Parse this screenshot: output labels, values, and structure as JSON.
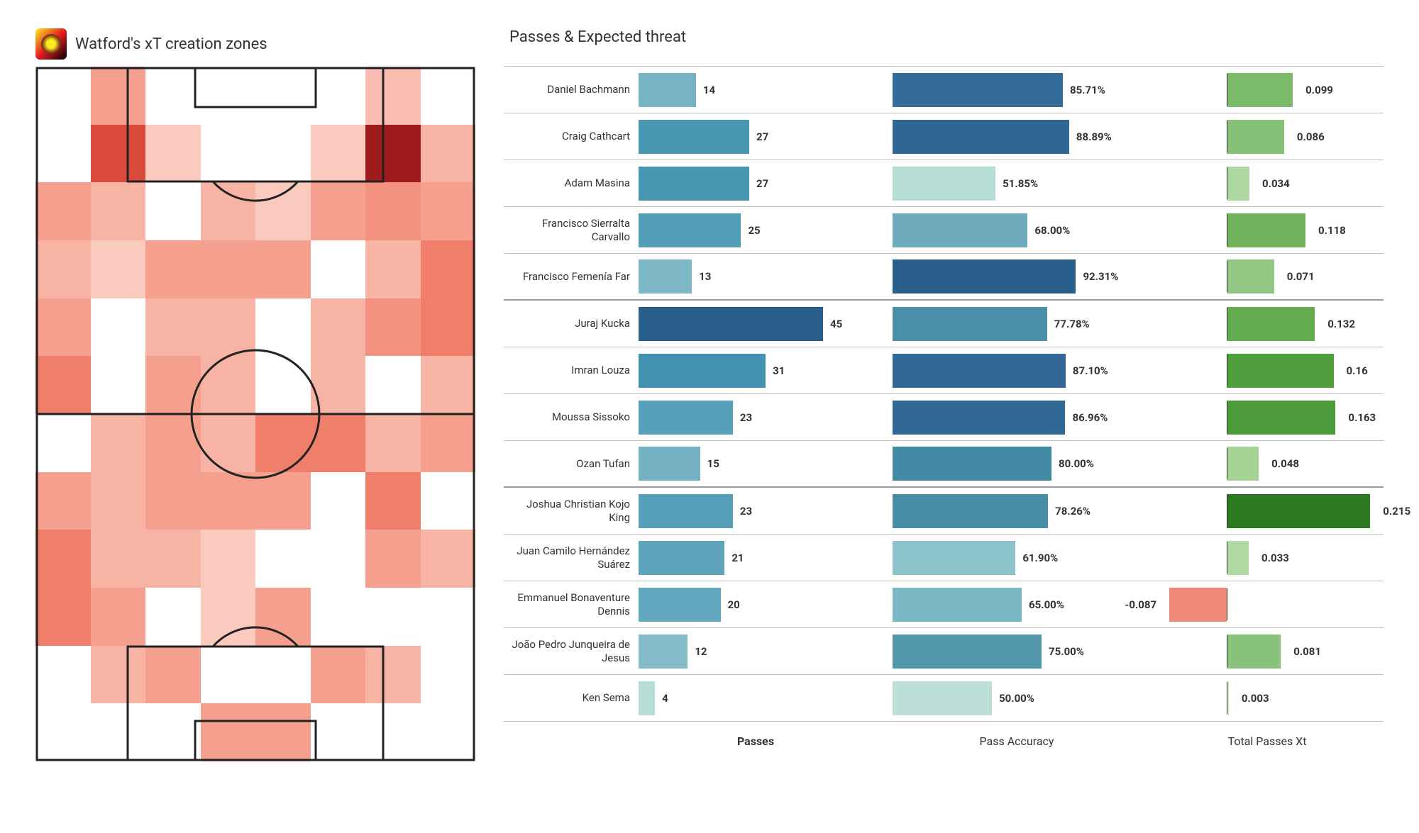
{
  "heatmap": {
    "title": "Watford's xT creation zones",
    "cols": 8,
    "rows": 12,
    "cell_colors": [
      "#ffffff",
      "#f5a08e",
      "#ffffff",
      "#ffffff",
      "#ffffff",
      "#ffffff",
      "#f9beb1",
      "#ffffff",
      "#ffffff",
      "#d94a3a",
      "#facabf",
      "#ffffff",
      "#ffffff",
      "#facabf",
      "#a01b1b",
      "#f7b3a4",
      "#f5a08e",
      "#f7b3a4",
      "#ffffff",
      "#f7b3a4",
      "#facabf",
      "#f5a08e",
      "#f39280",
      "#f5a08e",
      "#f7b3a4",
      "#facabf",
      "#f5a08e",
      "#f5a08e",
      "#f5a08e",
      "#ffffff",
      "#f7b3a4",
      "#ef7e6b",
      "#f5a08e",
      "#ffffff",
      "#f7b3a4",
      "#f7b3a4",
      "#ffffff",
      "#f7b3a4",
      "#f39280",
      "#ef7e6b",
      "#ef7e6b",
      "#ffffff",
      "#f5a08e",
      "#f7b3a4",
      "#ffffff",
      "#f7b3a4",
      "#ffffff",
      "#f7b3a4",
      "#ffffff",
      "#f7b3a4",
      "#f5a08e",
      "#f7b3a4",
      "#ef7e6b",
      "#ef7e6b",
      "#f7b3a4",
      "#f5a08e",
      "#f5a08e",
      "#f7b3a4",
      "#f5a08e",
      "#f5a08e",
      "#f5a08e",
      "#ffffff",
      "#ef7e6b",
      "#ffffff",
      "#ef7e6b",
      "#f7b3a4",
      "#f7b3a4",
      "#facabf",
      "#ffffff",
      "#ffffff",
      "#f5a08e",
      "#f7b3a4",
      "#ef7e6b",
      "#f5a08e",
      "#ffffff",
      "#facabf",
      "#f5a08e",
      "#ffffff",
      "#ffffff",
      "#ffffff",
      "#ffffff",
      "#f7b3a4",
      "#f5a08e",
      "#ffffff",
      "#ffffff",
      "#f5a08e",
      "#f7b3a4",
      "#ffffff",
      "#ffffff",
      "#ffffff",
      "#ffffff",
      "#f5a08e",
      "#f5a08e",
      "#ffffff",
      "#ffffff",
      "#ffffff"
    ],
    "line_color": "#222222",
    "line_width": 3
  },
  "chart": {
    "title": "Passes & Expected threat",
    "axis": {
      "passes": "Passes",
      "accuracy": "Pass Accuracy",
      "xt": "Total Passes Xt"
    },
    "passes": {
      "domain": 45
    },
    "accuracy": {
      "domain": 100
    },
    "xt": {
      "neg_domain": 0.1,
      "pos_domain": 0.22,
      "zero_ratio": 0.31
    },
    "groups": [
      4,
      8
    ],
    "players": [
      {
        "name": "Daniel Bachmann",
        "passes": 14,
        "passes_label": "14",
        "passes_color": "#76b3c4",
        "accuracy": 85.71,
        "accuracy_label": "85.71%",
        "accuracy_color": "#336b99",
        "xt": 0.099,
        "xt_label": "0.099",
        "xt_color": "#7bbb6a"
      },
      {
        "name": "Craig Cathcart",
        "passes": 27,
        "passes_label": "27",
        "passes_color": "#4a97b3",
        "accuracy": 88.89,
        "accuracy_label": "88.89%",
        "accuracy_color": "#2f6694",
        "xt": 0.086,
        "xt_label": "0.086",
        "xt_color": "#86c177"
      },
      {
        "name": "Adam Masina",
        "passes": 27,
        "passes_label": "27",
        "passes_color": "#4a97b3",
        "accuracy": 51.85,
        "accuracy_label": "51.85%",
        "accuracy_color": "#b6ddd6",
        "xt": 0.034,
        "xt_label": "0.034",
        "xt_color": "#aed8a1"
      },
      {
        "name": "Francisco Sierralta Carvallo",
        "passes": 25,
        "passes_label": "25",
        "passes_color": "#529db7",
        "accuracy": 68.0,
        "accuracy_label": "68.00%",
        "accuracy_color": "#6faabd",
        "xt": 0.118,
        "xt_label": "0.118",
        "xt_color": "#6fb45d"
      },
      {
        "name": "Francisco Femenía Far",
        "passes": 13,
        "passes_label": "13",
        "passes_color": "#7eb8c7",
        "accuracy": 92.31,
        "accuracy_label": "92.31%",
        "accuracy_color": "#2a5f8c",
        "xt": 0.071,
        "xt_label": "0.071",
        "xt_color": "#90c783"
      },
      {
        "name": "Juraj Kucka",
        "passes": 45,
        "passes_label": "45",
        "passes_color": "#2a5f8c",
        "accuracy": 77.78,
        "accuracy_label": "77.78%",
        "accuracy_color": "#4a8fa8",
        "xt": 0.132,
        "xt_label": "0.132",
        "xt_color": "#63ad50"
      },
      {
        "name": "Imran Louza",
        "passes": 31,
        "passes_label": "31",
        "passes_color": "#4291af",
        "accuracy": 87.1,
        "accuracy_label": "87.10%",
        "accuracy_color": "#316896",
        "xt": 0.16,
        "xt_label": "0.16",
        "xt_color": "#4f9f3e"
      },
      {
        "name": "Moussa Sissoko",
        "passes": 23,
        "passes_label": "23",
        "passes_color": "#57a0b9",
        "accuracy": 86.96,
        "accuracy_label": "86.96%",
        "accuracy_color": "#316896",
        "xt": 0.163,
        "xt_label": "0.163",
        "xt_color": "#4c9c3b"
      },
      {
        "name": "Ozan Tufan",
        "passes": 15,
        "passes_label": "15",
        "passes_color": "#72b0c2",
        "accuracy": 80.0,
        "accuracy_label": "80.00%",
        "accuracy_color": "#4289a4",
        "xt": 0.048,
        "xt_label": "0.048",
        "xt_color": "#a4d395"
      },
      {
        "name": "Joshua Christian Kojo King",
        "passes": 23,
        "passes_label": "23",
        "passes_color": "#57a0b9",
        "accuracy": 78.26,
        "accuracy_label": "78.26%",
        "accuracy_color": "#488ea7",
        "xt": 0.215,
        "xt_label": "0.215",
        "xt_color": "#2b7a1f"
      },
      {
        "name": "Juan Camilo Hernández Suárez",
        "passes": 21,
        "passes_label": "21",
        "passes_color": "#5da4bb",
        "accuracy": 61.9,
        "accuracy_label": "61.90%",
        "accuracy_color": "#8cc2ca",
        "xt": 0.033,
        "xt_label": "0.033",
        "xt_color": "#b0d9a3"
      },
      {
        "name": "Emmanuel Bonaventure Dennis",
        "passes": 20,
        "passes_label": "20",
        "passes_color": "#61a7bd",
        "accuracy": 65.0,
        "accuracy_label": "65.00%",
        "accuracy_color": "#7cb7c6",
        "xt": -0.087,
        "xt_label": "-0.087",
        "xt_color": "#f08976"
      },
      {
        "name": "João Pedro Junqueira de Jesus",
        "passes": 12,
        "passes_label": "12",
        "passes_color": "#85bcc9",
        "accuracy": 75.0,
        "accuracy_label": "75.00%",
        "accuracy_color": "#5296ac",
        "xt": 0.081,
        "xt_label": "0.081",
        "xt_color": "#89c37b"
      },
      {
        "name": "Ken Sema",
        "passes": 4,
        "passes_label": "4",
        "passes_color": "#b6ddd6",
        "accuracy": 50.0,
        "accuracy_label": "50.00%",
        "accuracy_color": "#bce0d8",
        "xt": 0.003,
        "xt_label": "0.003",
        "xt_color": "#d1ebc8"
      }
    ]
  }
}
